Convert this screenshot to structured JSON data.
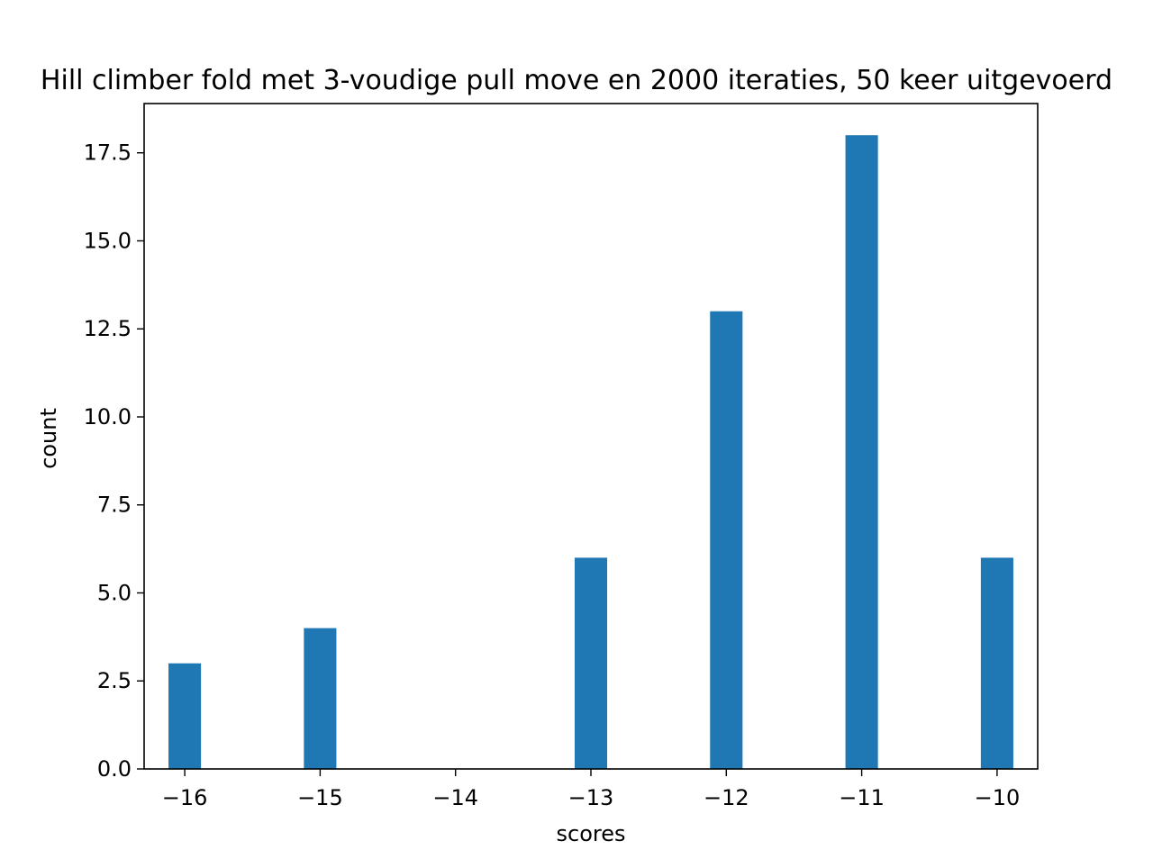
{
  "chart_data": {
    "type": "bar",
    "title": "Hill climber fold met 3-voudige pull move en 2000 iteraties, 50 keer uitgevoerd",
    "xlabel": "scores",
    "ylabel": "count",
    "xlim": [
      -16.3,
      -9.7
    ],
    "ylim": [
      0,
      18.9
    ],
    "x": [
      -16,
      -15,
      -13,
      -12,
      -11,
      -10
    ],
    "values": [
      3,
      4,
      6,
      13,
      18,
      6
    ],
    "bar_width": 0.24,
    "x_ticks": [
      -16,
      -15,
      -14,
      -13,
      -12,
      -11,
      -10
    ],
    "x_tick_labels": [
      "−16",
      "−15",
      "−14",
      "−13",
      "−12",
      "−11",
      "−10"
    ],
    "y_ticks": [
      0,
      2.5,
      5,
      7.5,
      10,
      12.5,
      15,
      17.5
    ],
    "y_tick_labels": [
      "0.0",
      "2.5",
      "5.0",
      "7.5",
      "10.0",
      "12.5",
      "15.0",
      "17.5"
    ],
    "bar_color": "#1f77b4",
    "grid": false,
    "legend": "none"
  }
}
